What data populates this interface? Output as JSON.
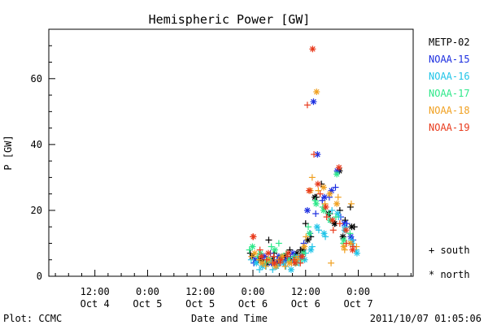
{
  "chart_data": {
    "type": "scatter",
    "title": "Hemispheric Power [GW]",
    "xlabel": "Date and Time",
    "ylabel": "P [GW]",
    "footer_left": "Plot: CCMC",
    "footer_right": "2011/10/07 01:05:06",
    "x_unit": "hours",
    "xlim": [
      -70.5,
      12.5
    ],
    "ylim": [
      0,
      75
    ],
    "x_ticks": [
      {
        "value": -60,
        "line1": "12:00",
        "line2": "Oct 4"
      },
      {
        "value": -48,
        "line1": "0:00",
        "line2": "Oct 5"
      },
      {
        "value": -36,
        "line1": "12:00",
        "line2": "Oct 5"
      },
      {
        "value": -24,
        "line1": "0:00",
        "line2": "Oct 6"
      },
      {
        "value": -12,
        "line1": "12:00",
        "line2": "Oct 6"
      },
      {
        "value": 0,
        "line1": "0:00",
        "line2": "Oct 7"
      }
    ],
    "y_ticks": [
      0,
      20,
      40,
      60
    ],
    "legend_position": "right",
    "symbol_legend": [
      {
        "marker": "plus",
        "label": "+ south"
      },
      {
        "marker": "star",
        "label": "* north"
      }
    ],
    "series": [
      {
        "name": "METP-02",
        "color": "#000000",
        "south": [
          [
            -24.6,
            7
          ],
          [
            -22.8,
            5
          ],
          [
            -21.6,
            4
          ],
          [
            -20.4,
            11
          ],
          [
            -19.2,
            7
          ],
          [
            -18,
            5
          ],
          [
            -16.8,
            6
          ],
          [
            -15.6,
            8
          ],
          [
            -14.4,
            6
          ],
          [
            -13.2,
            8
          ],
          [
            -12,
            16
          ],
          [
            -10.8,
            12
          ],
          [
            -9.6,
            24
          ],
          [
            -8.4,
            28
          ],
          [
            -6.5,
            19
          ],
          [
            -5.3,
            16
          ],
          [
            -4.2,
            20
          ],
          [
            -3,
            17
          ],
          [
            -1.8,
            21
          ],
          [
            -0.9,
            15
          ]
        ],
        "north": [
          [
            -24.2,
            6
          ],
          [
            -22.2,
            5
          ],
          [
            -20.8,
            4
          ],
          [
            -19.5,
            5
          ],
          [
            -18.3,
            4
          ],
          [
            -16.9,
            6
          ],
          [
            -15.4,
            5
          ],
          [
            -14,
            7
          ],
          [
            -12.6,
            8
          ],
          [
            -11.5,
            11
          ],
          [
            -9.9,
            24
          ],
          [
            -6.8,
            19
          ],
          [
            -5.4,
            16
          ],
          [
            -4.3,
            32
          ],
          [
            -3.5,
            12
          ],
          [
            -1.5,
            15
          ]
        ]
      },
      {
        "name": "NOAA-15",
        "color": "#1c2ee0",
        "south": [
          [
            -23.8,
            4
          ],
          [
            -22,
            6
          ],
          [
            -20,
            7
          ],
          [
            -18.5,
            5
          ],
          [
            -17,
            4
          ],
          [
            -15.5,
            6
          ],
          [
            -13.8,
            5
          ],
          [
            -12.4,
            10
          ],
          [
            -11,
            13
          ],
          [
            -9.7,
            19
          ],
          [
            -8.2,
            23
          ],
          [
            -6.6,
            24
          ],
          [
            -5.2,
            27
          ],
          [
            -4,
            18
          ],
          [
            -2.6,
            16
          ],
          [
            -1.2,
            11
          ]
        ],
        "north": [
          [
            -23.5,
            5
          ],
          [
            -21.4,
            6
          ],
          [
            -19.8,
            4
          ],
          [
            -18.1,
            6
          ],
          [
            -16.5,
            5
          ],
          [
            -14.9,
            7
          ],
          [
            -13.1,
            6
          ],
          [
            -11.6,
            20
          ],
          [
            -10.2,
            53
          ],
          [
            -9.3,
            37
          ],
          [
            -7.7,
            24
          ],
          [
            -6.1,
            26
          ],
          [
            -4.8,
            32
          ],
          [
            -3.2,
            16
          ],
          [
            -1.7,
            12
          ]
        ]
      },
      {
        "name": "NOAA-16",
        "color": "#20c4e8",
        "south": [
          [
            -24.4,
            5
          ],
          [
            -22.5,
            2
          ],
          [
            -21,
            3
          ],
          [
            -19.5,
            2
          ],
          [
            -18,
            4
          ],
          [
            -16.5,
            3
          ],
          [
            -15,
            5
          ],
          [
            -13.5,
            4
          ],
          [
            -12,
            7
          ],
          [
            -10.5,
            9
          ],
          [
            -9,
            14
          ],
          [
            -7.5,
            12
          ],
          [
            -6,
            20
          ],
          [
            -4.5,
            18
          ],
          [
            -3,
            15
          ],
          [
            -1.5,
            11
          ],
          [
            -0.5,
            8
          ]
        ],
        "north": [
          [
            -23.2,
            4
          ],
          [
            -21.8,
            3
          ],
          [
            -20.2,
            5
          ],
          [
            -18.6,
            3
          ],
          [
            -17.1,
            4
          ],
          [
            -15.3,
            2
          ],
          [
            -13.7,
            6
          ],
          [
            -12.2,
            5
          ],
          [
            -10.8,
            8
          ],
          [
            -9.4,
            15
          ],
          [
            -7.8,
            13
          ],
          [
            -6.3,
            17
          ],
          [
            -4.7,
            19
          ],
          [
            -3.1,
            14
          ],
          [
            -1.4,
            10
          ],
          [
            -0.3,
            7
          ]
        ]
      },
      {
        "name": "NOAA-17",
        "color": "#2ee88a",
        "south": [
          [
            -24.8,
            8
          ],
          [
            -22.9,
            6
          ],
          [
            -21.2,
            4
          ],
          [
            -19.8,
            9
          ],
          [
            -18.1,
            10
          ],
          [
            -16.4,
            7
          ],
          [
            -14.6,
            6
          ],
          [
            -12.9,
            5
          ],
          [
            -11.4,
            15
          ],
          [
            -9.8,
            23
          ],
          [
            -8.1,
            21
          ],
          [
            -6.7,
            19
          ],
          [
            -5.1,
            18
          ],
          [
            -3.4,
            10
          ],
          [
            -1.9,
            13
          ]
        ],
        "north": [
          [
            -24.1,
            9
          ],
          [
            -22.3,
            7
          ],
          [
            -20.6,
            5
          ],
          [
            -19,
            8
          ],
          [
            -17.4,
            6
          ],
          [
            -15.8,
            5
          ],
          [
            -14.2,
            4
          ],
          [
            -12.5,
            7
          ],
          [
            -11.1,
            13
          ],
          [
            -9.6,
            22
          ],
          [
            -7.9,
            20
          ],
          [
            -6.4,
            17
          ],
          [
            -4.9,
            31
          ],
          [
            -3.3,
            11
          ]
        ]
      },
      {
        "name": "NOAA-18",
        "color": "#f0a020",
        "south": [
          [
            -24.3,
            6
          ],
          [
            -22.6,
            5
          ],
          [
            -21.1,
            3
          ],
          [
            -19.6,
            4
          ],
          [
            -18.2,
            5
          ],
          [
            -16.7,
            3
          ],
          [
            -15.2,
            4
          ],
          [
            -13.6,
            6
          ],
          [
            -11.9,
            12
          ],
          [
            -10.5,
            30
          ],
          [
            -9.1,
            26
          ],
          [
            -7.6,
            22
          ],
          [
            -6.2,
            4
          ],
          [
            -4.6,
            24
          ],
          [
            -3.1,
            8
          ],
          [
            -1.6,
            22
          ],
          [
            -0.4,
            9
          ]
        ],
        "north": [
          [
            -23.6,
            7
          ],
          [
            -21.9,
            4
          ],
          [
            -20.4,
            5
          ],
          [
            -18.8,
            3
          ],
          [
            -17.3,
            6
          ],
          [
            -15.7,
            4
          ],
          [
            -14.1,
            5
          ],
          [
            -12.3,
            9
          ],
          [
            -10.9,
            26
          ],
          [
            -9.5,
            56
          ],
          [
            -7.9,
            27
          ],
          [
            -6.5,
            25
          ],
          [
            -4.9,
            22
          ],
          [
            -3.3,
            9
          ],
          [
            -1.8,
            10
          ]
        ]
      },
      {
        "name": "NOAA-19",
        "color": "#e83a1c",
        "south": [
          [
            -24,
            12
          ],
          [
            -22.4,
            8
          ],
          [
            -20.9,
            5
          ],
          [
            -19.3,
            6
          ],
          [
            -17.8,
            4
          ],
          [
            -16.2,
            6
          ],
          [
            -14.7,
            5
          ],
          [
            -13.2,
            4
          ],
          [
            -11.6,
            52
          ],
          [
            -10.1,
            37
          ],
          [
            -8.7,
            25
          ],
          [
            -7.2,
            18
          ],
          [
            -5.7,
            14
          ],
          [
            -4.2,
            16
          ],
          [
            -2.7,
            10
          ],
          [
            -1.2,
            9
          ]
        ],
        "north": [
          [
            -23.9,
            12
          ],
          [
            -22.1,
            6
          ],
          [
            -20.5,
            7
          ],
          [
            -19.1,
            4
          ],
          [
            -17.6,
            5
          ],
          [
            -16,
            7
          ],
          [
            -14.4,
            4
          ],
          [
            -12.8,
            6
          ],
          [
            -11.2,
            26
          ],
          [
            -10.4,
            69
          ],
          [
            -9.2,
            28
          ],
          [
            -7.4,
            21
          ],
          [
            -5.9,
            17
          ],
          [
            -4.4,
            33
          ],
          [
            -2.8,
            14
          ],
          [
            -1.3,
            8
          ]
        ]
      }
    ]
  }
}
